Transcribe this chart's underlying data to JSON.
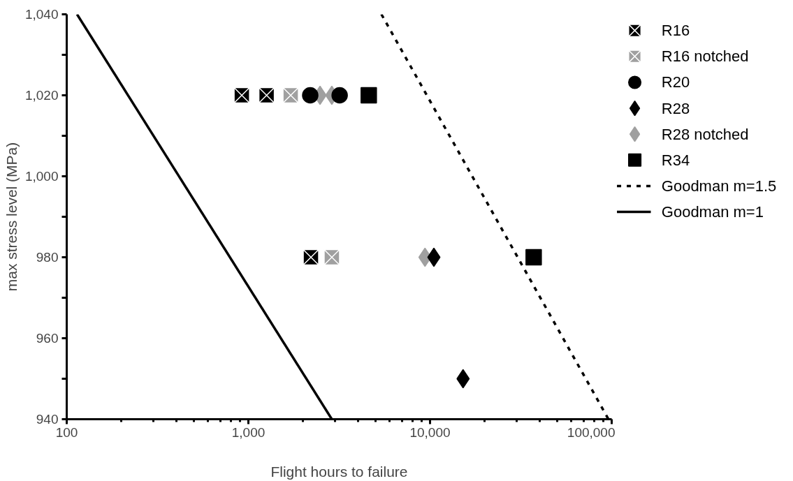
{
  "chart_data": {
    "type": "scatter",
    "xlabel": "Flight hours to failure",
    "ylabel": "max stress level (MPa)",
    "log": "x",
    "grid": false,
    "legend": "right",
    "xlim": [
      100,
      100000
    ],
    "xticks": [
      {
        "value": 100,
        "label": "100"
      },
      {
        "value": 1000,
        "label": "1,000"
      },
      {
        "value": 10000,
        "label": "10,000"
      },
      {
        "value": 100000,
        "label": "100,000"
      }
    ],
    "ylim": [
      940,
      1040
    ],
    "yticks": [
      {
        "value": 940,
        "label": "940"
      },
      {
        "value": 950,
        "label": null
      },
      {
        "value": 960,
        "label": "960"
      },
      {
        "value": 970,
        "label": null
      },
      {
        "value": 980,
        "label": "980"
      },
      {
        "value": 990,
        "label": null
      },
      {
        "value": 1000,
        "label": "1,000"
      },
      {
        "value": 1010,
        "label": null
      },
      {
        "value": 1020,
        "label": "1,020"
      },
      {
        "value": 1030,
        "label": null
      },
      {
        "value": 1040,
        "label": "1,040"
      }
    ],
    "series": [
      {
        "name": "R16",
        "color": "#000000",
        "marker": "square_x",
        "x": [
          920,
          1260,
          2210
        ],
        "values": [
          1020,
          1020,
          980
        ]
      },
      {
        "name": "R16 notched",
        "color": "#a0a0a0",
        "marker": "square_x",
        "x": [
          1710,
          2880
        ],
        "values": [
          1020,
          980
        ]
      },
      {
        "name": "R20",
        "color": "#000000",
        "marker": "circle",
        "x": [
          2190,
          3180
        ],
        "values": [
          1020,
          1020
        ]
      },
      {
        "name": "R28",
        "color": "#000000",
        "marker": "diamond",
        "x": [
          10500,
          15200
        ],
        "values": [
          980,
          950
        ]
      },
      {
        "name": "R28 notched",
        "color": "#a0a0a0",
        "marker": "diamond",
        "x": [
          2480,
          2880,
          9380
        ],
        "values": [
          1020,
          1020,
          980
        ]
      },
      {
        "name": "R34",
        "color": "#000000",
        "marker": "square",
        "x": [
          4600,
          37200
        ],
        "values": [
          1020,
          980
        ]
      },
      {
        "name": "Goodman m=1.5",
        "type": "line",
        "line_style": "dashed",
        "color": "#000000",
        "x": [
          5400,
          96000
        ],
        "values": [
          1040,
          940
        ]
      },
      {
        "name": "Goodman m=1",
        "type": "line",
        "line_style": "solid",
        "color": "#000000",
        "x": [
          114,
          2880
        ],
        "values": [
          1040,
          940
        ]
      }
    ]
  }
}
